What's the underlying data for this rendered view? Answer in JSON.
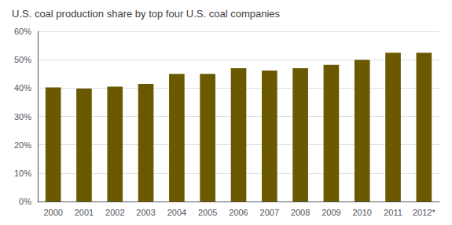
{
  "chart_data": {
    "type": "bar",
    "title": "U.S. coal production share by top four U.S. coal companies",
    "categories": [
      "2000",
      "2001",
      "2002",
      "2003",
      "2004",
      "2005",
      "2006",
      "2007",
      "2008",
      "2009",
      "2010",
      "2011",
      "2012*"
    ],
    "values": [
      40.2,
      39.8,
      40.5,
      41.5,
      45.0,
      45.0,
      47.0,
      46.2,
      47.0,
      48.2,
      50.0,
      52.5,
      52.5
    ],
    "color": "#6b5900",
    "ylim": [
      0,
      60
    ],
    "yticks": [
      {
        "value": 0,
        "label": "0%"
      },
      {
        "value": 10,
        "label": "10%"
      },
      {
        "value": 20,
        "label": "20%"
      },
      {
        "value": 30,
        "label": "30%"
      },
      {
        "value": 40,
        "label": "40%"
      },
      {
        "value": 50,
        "label": "50%"
      },
      {
        "value": 60,
        "label": "60%"
      }
    ],
    "grid": true
  }
}
